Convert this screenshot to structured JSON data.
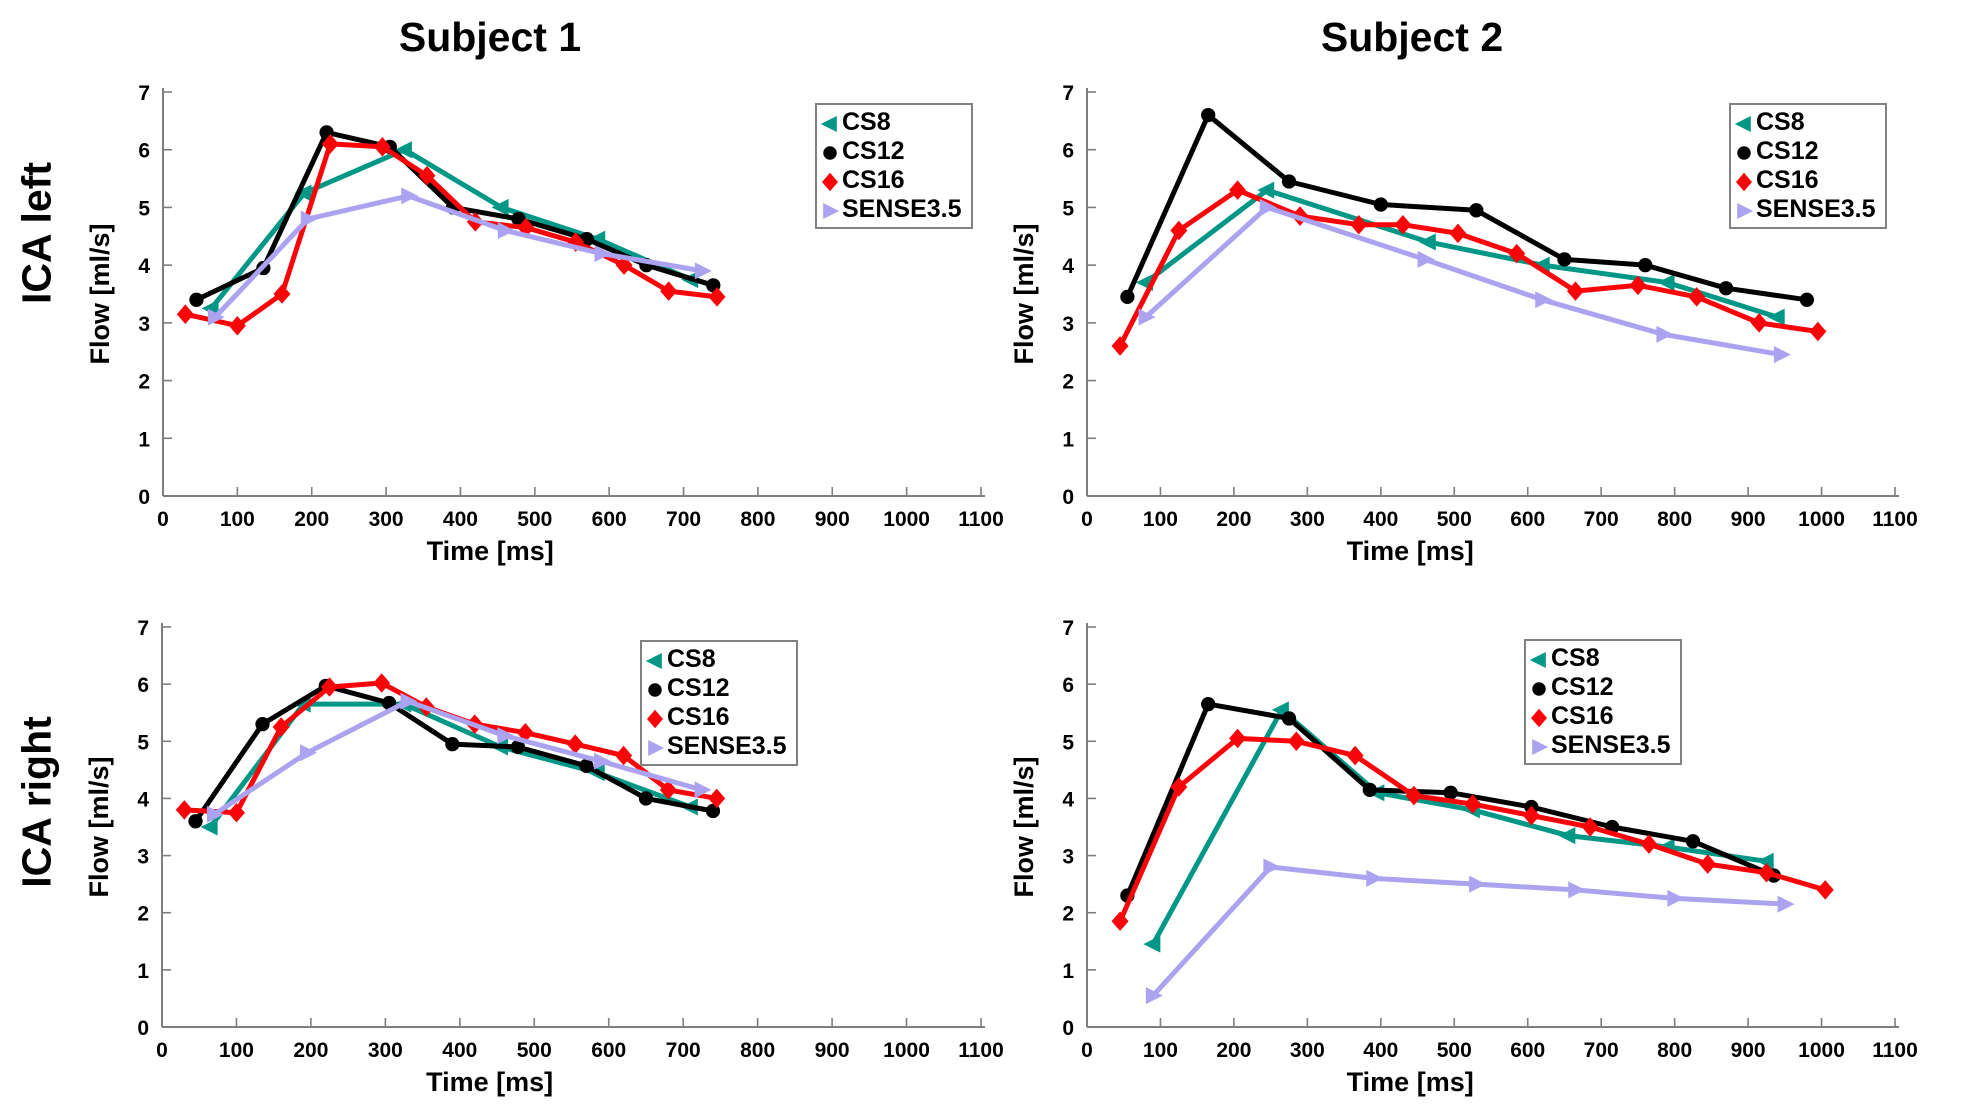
{
  "figure": {
    "titles": [
      "Subject 1",
      "Subject 2"
    ],
    "row_labels": [
      "ICA left",
      "ICA right"
    ],
    "xlabel": "Time [ms]",
    "ylabel": "Flow [ml/s]"
  },
  "colors": {
    "cs8": "#009786",
    "cs12": "#000000",
    "cs16": "#f90408",
    "sense35": "#aca3f0",
    "axis": "#7e7e7e",
    "text": "#000000"
  },
  "legend": {
    "entries": [
      {
        "label": "CS8",
        "color": "#009786",
        "marker": "triangle-left"
      },
      {
        "label": "CS12",
        "color": "#000000",
        "marker": "circle"
      },
      {
        "label": "CS16",
        "color": "#f90408",
        "marker": "diamond"
      },
      {
        "label": "SENSE3.5",
        "color": "#aca3f0",
        "marker": "triangle-right"
      }
    ]
  },
  "chart_data": [
    {
      "type": "line",
      "id": "subject1-ica-left",
      "title": "Subject 1",
      "row": "ICA left",
      "xlabel": "Time [ms]",
      "ylabel": "Flow [ml/s]",
      "xlim": [
        0,
        1100
      ],
      "ylim": [
        0,
        7
      ],
      "xticks": [
        0,
        100,
        200,
        300,
        400,
        500,
        600,
        700,
        800,
        900,
        1000,
        1100
      ],
      "yticks": [
        0,
        1,
        2,
        3,
        4,
        5,
        6,
        7
      ],
      "grid": false,
      "legend_position": "upper-right",
      "series": [
        {
          "name": "CS8",
          "color": "#009786",
          "marker": "triangle-left",
          "points": [
            [
              65,
              3.25
            ],
            [
              190,
              5.25
            ],
            [
              325,
              6.0
            ],
            [
              455,
              5.0
            ],
            [
              585,
              4.45
            ],
            [
              710,
              3.75
            ]
          ]
        },
        {
          "name": "CS12",
          "color": "#000000",
          "marker": "circle",
          "points": [
            [
              45,
              3.4
            ],
            [
              135,
              3.95
            ],
            [
              220,
              6.3
            ],
            [
              305,
              6.05
            ],
            [
              390,
              5.0
            ],
            [
              478,
              4.8
            ],
            [
              570,
              4.45
            ],
            [
              650,
              4.0
            ],
            [
              740,
              3.65
            ]
          ]
        },
        {
          "name": "CS16",
          "color": "#f90408",
          "marker": "diamond",
          "points": [
            [
              30,
              3.15
            ],
            [
              100,
              2.95
            ],
            [
              160,
              3.5
            ],
            [
              225,
              6.1
            ],
            [
              295,
              6.05
            ],
            [
              355,
              5.55
            ],
            [
              420,
              4.75
            ],
            [
              488,
              4.65
            ],
            [
              555,
              4.4
            ],
            [
              620,
              4.0
            ],
            [
              680,
              3.55
            ],
            [
              745,
              3.45
            ]
          ]
        },
        {
          "name": "SENSE3.5",
          "color": "#aca3f0",
          "marker": "triangle-right",
          "points": [
            [
              70,
              3.1
            ],
            [
              195,
              4.8
            ],
            [
              330,
              5.2
            ],
            [
              460,
              4.6
            ],
            [
              590,
              4.2
            ],
            [
              725,
              3.9
            ]
          ]
        }
      ]
    },
    {
      "type": "line",
      "id": "subject2-ica-left",
      "title": "Subject 2",
      "row": "ICA left",
      "xlabel": "Time [ms]",
      "ylabel": "Flow [ml/s]",
      "xlim": [
        0,
        1100
      ],
      "ylim": [
        0,
        7
      ],
      "xticks": [
        0,
        100,
        200,
        300,
        400,
        500,
        600,
        700,
        800,
        900,
        1000,
        1100
      ],
      "yticks": [
        0,
        1,
        2,
        3,
        4,
        5,
        6,
        7
      ],
      "grid": false,
      "legend_position": "upper-right",
      "series": [
        {
          "name": "CS8",
          "color": "#009786",
          "marker": "triangle-left",
          "points": [
            [
              80,
              3.7
            ],
            [
              245,
              5.3
            ],
            [
              465,
              4.4
            ],
            [
              620,
              4.0
            ],
            [
              790,
              3.7
            ],
            [
              940,
              3.1
            ]
          ]
        },
        {
          "name": "CS12",
          "color": "#000000",
          "marker": "circle",
          "points": [
            [
              55,
              3.45
            ],
            [
              165,
              6.6
            ],
            [
              275,
              5.45
            ],
            [
              400,
              5.05
            ],
            [
              530,
              4.95
            ],
            [
              650,
              4.1
            ],
            [
              760,
              4.0
            ],
            [
              870,
              3.6
            ],
            [
              980,
              3.4
            ]
          ]
        },
        {
          "name": "CS16",
          "color": "#f90408",
          "marker": "diamond",
          "points": [
            [
              45,
              2.6
            ],
            [
              125,
              4.6
            ],
            [
              205,
              5.3
            ],
            [
              290,
              4.85
            ],
            [
              370,
              4.7
            ],
            [
              430,
              4.7
            ],
            [
              505,
              4.55
            ],
            [
              585,
              4.2
            ],
            [
              665,
              3.55
            ],
            [
              750,
              3.65
            ],
            [
              830,
              3.45
            ],
            [
              915,
              3.0
            ],
            [
              995,
              2.85
            ]
          ]
        },
        {
          "name": "SENSE3.5",
          "color": "#aca3f0",
          "marker": "triangle-right",
          "points": [
            [
              80,
              3.1
            ],
            [
              245,
              5.0
            ],
            [
              460,
              4.1
            ],
            [
              620,
              3.4
            ],
            [
              785,
              2.8
            ],
            [
              945,
              2.45
            ]
          ]
        }
      ]
    },
    {
      "type": "line",
      "id": "subject1-ica-right",
      "title": "Subject 1",
      "row": "ICA right",
      "xlabel": "Time [ms]",
      "ylabel": "Flow [ml/s]",
      "xlim": [
        0,
        1100
      ],
      "ylim": [
        0,
        7
      ],
      "xticks": [
        0,
        100,
        200,
        300,
        400,
        500,
        600,
        700,
        800,
        900,
        1000,
        1100
      ],
      "yticks": [
        0,
        1,
        2,
        3,
        4,
        5,
        6,
        7
      ],
      "grid": false,
      "legend_position": "upper-right",
      "series": [
        {
          "name": "CS8",
          "color": "#009786",
          "marker": "triangle-left",
          "points": [
            [
              65,
              3.5
            ],
            [
              190,
              5.65
            ],
            [
              325,
              5.65
            ],
            [
              455,
              4.9
            ],
            [
              585,
              4.45
            ],
            [
              710,
              3.85
            ]
          ]
        },
        {
          "name": "CS12",
          "color": "#000000",
          "marker": "circle",
          "points": [
            [
              45,
              3.6
            ],
            [
              135,
              5.3
            ],
            [
              220,
              5.97
            ],
            [
              305,
              5.67
            ],
            [
              390,
              4.95
            ],
            [
              478,
              4.9
            ],
            [
              570,
              4.57
            ],
            [
              650,
              4.0
            ],
            [
              740,
              3.78
            ]
          ]
        },
        {
          "name": "CS16",
          "color": "#f90408",
          "marker": "diamond",
          "points": [
            [
              30,
              3.8
            ],
            [
              100,
              3.75
            ],
            [
              160,
              5.25
            ],
            [
              225,
              5.95
            ],
            [
              295,
              6.02
            ],
            [
              355,
              5.6
            ],
            [
              420,
              5.3
            ],
            [
              488,
              5.15
            ],
            [
              555,
              4.95
            ],
            [
              620,
              4.75
            ],
            [
              680,
              4.15
            ],
            [
              745,
              4.0
            ]
          ]
        },
        {
          "name": "SENSE3.5",
          "color": "#aca3f0",
          "marker": "triangle-right",
          "points": [
            [
              70,
              3.72
            ],
            [
              195,
              4.8
            ],
            [
              330,
              5.7
            ],
            [
              460,
              5.1
            ],
            [
              590,
              4.65
            ],
            [
              725,
              4.15
            ]
          ]
        }
      ]
    },
    {
      "type": "line",
      "id": "subject2-ica-right",
      "title": "Subject 2",
      "row": "ICA right",
      "xlabel": "Time [ms]",
      "ylabel": "Flow [ml/s]",
      "xlim": [
        0,
        1100
      ],
      "ylim": [
        0,
        7
      ],
      "xticks": [
        0,
        100,
        200,
        300,
        400,
        500,
        600,
        700,
        800,
        900,
        1000,
        1100
      ],
      "yticks": [
        0,
        1,
        2,
        3,
        4,
        5,
        6,
        7
      ],
      "grid": false,
      "legend_position": "upper-right",
      "series": [
        {
          "name": "CS8",
          "color": "#009786",
          "marker": "triangle-left",
          "points": [
            [
              90,
              1.45
            ],
            [
              265,
              5.55
            ],
            [
              395,
              4.1
            ],
            [
              525,
              3.8
            ],
            [
              655,
              3.35
            ],
            [
              790,
              3.15
            ],
            [
              925,
              2.9
            ]
          ]
        },
        {
          "name": "CS12",
          "color": "#000000",
          "marker": "circle",
          "points": [
            [
              55,
              2.3
            ],
            [
              165,
              5.65
            ],
            [
              275,
              5.4
            ],
            [
              385,
              4.15
            ],
            [
              495,
              4.1
            ],
            [
              605,
              3.85
            ],
            [
              715,
              3.5
            ],
            [
              825,
              3.25
            ],
            [
              935,
              2.65
            ]
          ]
        },
        {
          "name": "CS16",
          "color": "#f90408",
          "marker": "diamond",
          "points": [
            [
              45,
              1.85
            ],
            [
              125,
              4.2
            ],
            [
              205,
              5.05
            ],
            [
              285,
              5.0
            ],
            [
              365,
              4.75
            ],
            [
              445,
              4.05
            ],
            [
              525,
              3.9
            ],
            [
              605,
              3.7
            ],
            [
              685,
              3.5
            ],
            [
              765,
              3.2
            ],
            [
              845,
              2.85
            ],
            [
              925,
              2.7
            ],
            [
              1005,
              2.4
            ]
          ]
        },
        {
          "name": "SENSE3.5",
          "color": "#aca3f0",
          "marker": "triangle-right",
          "points": [
            [
              90,
              0.55
            ],
            [
              250,
              2.8
            ],
            [
              390,
              2.6
            ],
            [
              530,
              2.5
            ],
            [
              665,
              2.4
            ],
            [
              800,
              2.25
            ],
            [
              950,
              2.15
            ]
          ]
        }
      ]
    }
  ]
}
